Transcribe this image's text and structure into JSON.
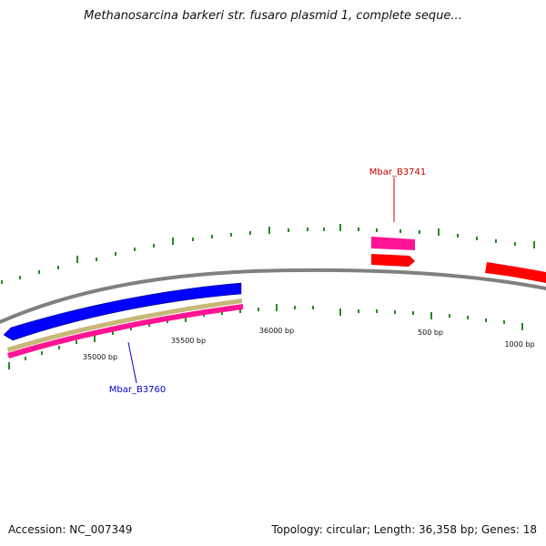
{
  "title": "Methanosarcina barkeri str. fusaro plasmid 1, complete seque...",
  "footer": {
    "accession": "Accession: NC_007349",
    "summary": "Topology: circular; Length: 36,358 bp; Genes: 18"
  },
  "ticks": [
    "35000 bp",
    "35500 bp",
    "36000 bp",
    "500 bp",
    "1000 bp"
  ],
  "gene_labels": [
    {
      "text": "Mbar_B3741",
      "color": "#cc0000"
    },
    {
      "text": "Mbar_B3760",
      "color": "#0000cc"
    }
  ],
  "colors": {
    "backbone": "#808080",
    "tick_marks": "#228b22",
    "forward_gene": "#ff0000",
    "reverse_gene": "#0000ff",
    "cds": "#ff1493",
    "misc": "#c8b878"
  }
}
